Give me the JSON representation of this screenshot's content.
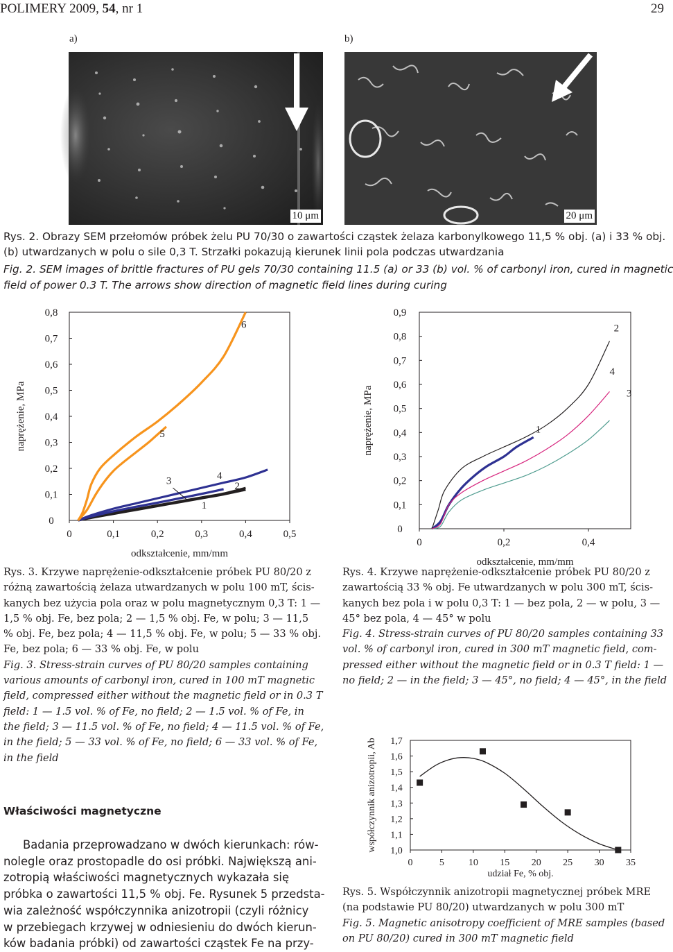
{
  "header": {
    "journal": "POLIMERY 2009, ",
    "volume": "54",
    ", nr 1": ", nr 1",
    "page": "29"
  },
  "fig2": {
    "label_a": "a)",
    "label_b": "b)",
    "scale_a": "10 μm",
    "scale_b": "20 μm",
    "caption_pl": [
      "Rys. 2. Obrazy SEM przełomów próbek żelu PU 70/30 o zawartości cząstek żelaza karbonylkowego 11,5 % obj. (a) i 33 % obj.",
      "(b) utwardzanych w polu o sile 0,3 T. Strzałki pokazują kierunek linii pola podczas utwardzania"
    ],
    "caption_en": [
      "Fig. 2. SEM images of brittle fractures of PU gels 70/30 containing 11.5 (a) or 33 (b) vol. % of carbonyl iron, cured in magnetic",
      "field of power 0.3 T. The arrows show direction of magnetic field lines during curing"
    ]
  },
  "fig3": {
    "ylabel": "naprężenie, MPa",
    "xlabel": "odkształcenie, mm/mm",
    "yticks": [
      "0",
      "0,1",
      "0,2",
      "0,3",
      "0,4",
      "0,5",
      "0,6",
      "0,7",
      "0,8"
    ],
    "xticks": [
      "0",
      "0,1",
      "0,2",
      "0,3",
      "0,4",
      "0,5"
    ],
    "caption_pl": [
      "Rys. 3. Krzywe naprężenie-odkształcenie próbek PU 80/20 z",
      "różną zawartością żelaza utwardzanych w polu 100 mT, ścis-",
      "kanych bez użycia pola oraz w polu magnetycznym 0,3 T: 1 —",
      "1,5 % obj. Fe, bez pola; 2 — 1,5 % obj. Fe, w polu; 3 — 11,5",
      "% obj. Fe, bez pola; 4 — 11,5 % obj. Fe, w polu; 5 — 33 % obj.",
      "Fe, bez pola; 6 — 33 % obj. Fe, w polu"
    ],
    "caption_en": [
      "Fig. 3. Stress-strain curves of PU 80/20 samples containing",
      "various amounts of carbonyl iron, cured in 100 mT magnetic",
      "field, compressed either without the magnetic field or in 0.3 T",
      "field: 1 — 1.5 vol. % of Fe, no field; 2 — 1.5 vol. % of Fe, in",
      "the field; 3 — 11.5 vol. % of Fe, no field; 4 — 11.5 vol. % of Fe,",
      "in the field; 5 — 33 vol. % of Fe, no field; 6 — 33 vol. % of Fe,",
      "in the field"
    ]
  },
  "fig4": {
    "ylabel": "naprężenie, MPa",
    "xlabel": "odkształcenie, mm/mm",
    "yticks": [
      "0",
      "0,1",
      "0,2",
      "0,3",
      "0,4",
      "0,5",
      "0,6",
      "0,7",
      "0,8",
      "0,9"
    ],
    "xticks": [
      "0",
      "0,2",
      "0,4"
    ],
    "caption_pl": [
      "Rys. 4. Krzywe naprężenie-odkształcenie próbek PU 80/20 z",
      "zawartością 33 % obj. Fe utwardzanych w polu 300 mT, ścis-",
      "kanych bez pola i w polu 0,3 T: 1 — bez pola, 2 — w polu, 3 —",
      "45° bez pola, 4 — 45° w polu"
    ],
    "caption_en": [
      "Fig. 4. Stress-strain curves of PU 80/20 samples containing 33",
      "vol. % of carbonyl iron, cured in 300 mT magnetic field, com-",
      "pressed either without the magnetic field or in 0.3 T field: 1 —",
      "no field; 2 — in the field; 3 — 45°, no field; 4 — 45°, in the field"
    ]
  },
  "fig5": {
    "ylabel": "współczynnik anizotropii, Ab",
    "xlabel": "udział Fe, % obj.",
    "yticks": [
      "1,0",
      "1,1",
      "1,2",
      "1,3",
      "1,4",
      "1,5",
      "1,6",
      "1,7"
    ],
    "xticks": [
      "0",
      "5",
      "10",
      "15",
      "20",
      "25",
      "30",
      "35"
    ],
    "caption_pl": [
      "Rys. 5. Współczynnik anizotropii magnetycznej próbek MRE",
      "(na podstawie PU 80/20) utwardzanych w polu 300 mT"
    ],
    "caption_en": [
      "Fig. 5. Magnetic anisotropy coefficient of MRE samples (based",
      "on PU 80/20) cured in 300 mT magnetic field"
    ]
  },
  "section": {
    "heading": "Właściwości magnetyczne",
    "lines": [
      "Badania przeprowadzano w dwóch kierunkach: rów-",
      "nolegle oraz prostopadle do osi próbki. Największą ani-",
      "zotropią właściwości magnetycznych wykazała się",
      "próbka o zawartości 11,5 % obj. Fe. Rysunek 5 przedsta-",
      "wia zależność współczynnika anizotropii (czyli różnicy",
      "w przebiegach krzywej w odniesieniu do dwóch kierun-",
      "ków badania próbki) od zawartości cząstek Fe na przy-"
    ]
  },
  "chart_data": [
    {
      "type": "line",
      "xlabel": "odkształcenie, mm/mm",
      "ylabel": "naprężenie, MPa",
      "xlim": [
        0,
        0.5
      ],
      "ylim": [
        0,
        0.8
      ],
      "series": [
        {
          "name": "1",
          "color": "#231f20",
          "x": [
            0.02,
            0.05,
            0.1,
            0.15,
            0.2,
            0.25,
            0.3,
            0.35,
            0.4
          ],
          "y": [
            0.0,
            0.01,
            0.025,
            0.04,
            0.055,
            0.07,
            0.085,
            0.1,
            0.118
          ]
        },
        {
          "name": "2",
          "color": "#231f20",
          "x": [
            0.02,
            0.05,
            0.1,
            0.15,
            0.2,
            0.25,
            0.3,
            0.35,
            0.4
          ],
          "y": [
            0.0,
            0.012,
            0.028,
            0.043,
            0.058,
            0.073,
            0.088,
            0.103,
            0.125
          ]
        },
        {
          "name": "3",
          "color": "#2e3192",
          "x": [
            0.02,
            0.05,
            0.1,
            0.15,
            0.2,
            0.25,
            0.3,
            0.35
          ],
          "y": [
            0.0,
            0.015,
            0.035,
            0.052,
            0.068,
            0.085,
            0.102,
            0.12
          ]
        },
        {
          "name": "4",
          "color": "#2e3192",
          "x": [
            0.02,
            0.05,
            0.1,
            0.15,
            0.2,
            0.25,
            0.3,
            0.35,
            0.4,
            0.45
          ],
          "y": [
            0.0,
            0.02,
            0.045,
            0.065,
            0.085,
            0.105,
            0.125,
            0.145,
            0.165,
            0.195
          ]
        },
        {
          "name": "5",
          "color": "#f7941d",
          "x": [
            0.02,
            0.04,
            0.06,
            0.08,
            0.1,
            0.12,
            0.15,
            0.18,
            0.2,
            0.22
          ],
          "y": [
            0.0,
            0.04,
            0.1,
            0.15,
            0.19,
            0.22,
            0.26,
            0.3,
            0.33,
            0.36
          ]
        },
        {
          "name": "6",
          "color": "#f7941d",
          "x": [
            0.02,
            0.03,
            0.04,
            0.05,
            0.07,
            0.1,
            0.15,
            0.2,
            0.25,
            0.3,
            0.35,
            0.4
          ],
          "y": [
            0.0,
            0.03,
            0.08,
            0.14,
            0.2,
            0.25,
            0.32,
            0.38,
            0.45,
            0.53,
            0.63,
            0.8
          ]
        }
      ]
    },
    {
      "type": "line",
      "xlabel": "odkształcenie, mm/mm",
      "ylabel": "naprężenie, MPa",
      "xlim": [
        0,
        0.5
      ],
      "ylim": [
        0,
        0.9
      ],
      "series": [
        {
          "name": "1",
          "color": "#2e3192",
          "x": [
            0.03,
            0.05,
            0.07,
            0.1,
            0.13,
            0.16,
            0.2,
            0.23,
            0.27
          ],
          "y": [
            0.0,
            0.03,
            0.1,
            0.17,
            0.22,
            0.26,
            0.3,
            0.34,
            0.38
          ]
        },
        {
          "name": "2",
          "color": "#231f20",
          "x": [
            0.03,
            0.045,
            0.06,
            0.1,
            0.15,
            0.2,
            0.25,
            0.3,
            0.35,
            0.4,
            0.45
          ],
          "y": [
            0.0,
            0.08,
            0.16,
            0.25,
            0.3,
            0.34,
            0.38,
            0.43,
            0.5,
            0.6,
            0.78
          ]
        },
        {
          "name": "3",
          "color": "#4f9c8f",
          "x": [
            0.03,
            0.05,
            0.07,
            0.1,
            0.15,
            0.2,
            0.25,
            0.3,
            0.35,
            0.4,
            0.45
          ],
          "y": [
            0.0,
            0.01,
            0.07,
            0.12,
            0.16,
            0.19,
            0.22,
            0.26,
            0.31,
            0.37,
            0.45
          ]
        },
        {
          "name": "4",
          "color": "#d6247d",
          "x": [
            0.03,
            0.05,
            0.07,
            0.1,
            0.15,
            0.2,
            0.25,
            0.3,
            0.35,
            0.4,
            0.45
          ],
          "y": [
            0.0,
            0.02,
            0.1,
            0.15,
            0.2,
            0.24,
            0.28,
            0.33,
            0.39,
            0.47,
            0.57
          ]
        }
      ]
    },
    {
      "type": "scatter",
      "xlabel": "udział Fe, % obj.",
      "ylabel": "współczynnik anizotropii, Ab",
      "xlim": [
        0,
        35
      ],
      "ylim": [
        1.0,
        1.7
      ],
      "series": [
        {
          "name": "",
          "points": [
            [
              1.5,
              1.43
            ],
            [
              11.5,
              1.63
            ],
            [
              18,
              1.29
            ],
            [
              25,
              1.24
            ],
            [
              33,
              1.0
            ]
          ]
        }
      ],
      "trend": {
        "x": [
          1.5,
          4,
          6,
          8,
          10,
          12,
          15,
          18,
          21,
          24,
          27,
          30,
          33
        ],
        "y": [
          1.47,
          1.54,
          1.575,
          1.59,
          1.585,
          1.56,
          1.49,
          1.39,
          1.28,
          1.18,
          1.1,
          1.04,
          1.0
        ]
      }
    }
  ]
}
